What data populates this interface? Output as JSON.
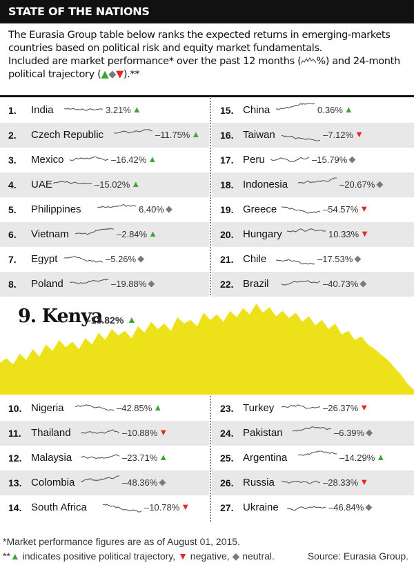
{
  "header": {
    "title": "STATE OF THE NATIONS"
  },
  "intro": {
    "line1": "The Eurasia Group table below ranks the expected returns in emerging-markets",
    "line2": "countries based on political risk and equity market fundamentals.",
    "line3a": "Included are market performance* over the past 12 months (",
    "line3b": "%) and 24-month",
    "line4a": "political trajectory (",
    "line4b": ").**"
  },
  "colors": {
    "up": "#3aa830",
    "down": "#e02a26",
    "neutral": "#7a7a7a",
    "kenya_fill": "#ede21a"
  },
  "chart_data": {
    "type": "table",
    "columns": [
      "rank",
      "country",
      "market_performance_12m_pct",
      "political_trajectory_24m"
    ],
    "rows": [
      {
        "rank": "1.",
        "country": "India",
        "value": "3.21%",
        "trend": "up"
      },
      {
        "rank": "2.",
        "country": "Czech Republic",
        "value": "–11.75%",
        "trend": "up"
      },
      {
        "rank": "3.",
        "country": "Mexico",
        "value": "–16.42%",
        "trend": "up"
      },
      {
        "rank": "4.",
        "country": "UAE",
        "value": "–15.02%",
        "trend": "up"
      },
      {
        "rank": "5.",
        "country": "Philippines",
        "value": "6.40%",
        "trend": "neutral"
      },
      {
        "rank": "6.",
        "country": "Vietnam",
        "value": "–2.84%",
        "trend": "up"
      },
      {
        "rank": "7.",
        "country": "Egypt",
        "value": "–5.26%",
        "trend": "neutral"
      },
      {
        "rank": "8.",
        "country": "Poland",
        "value": "–19.88%",
        "trend": "neutral"
      },
      {
        "rank": "9.",
        "country": "Kenya",
        "value": "–13.82%",
        "trend": "up"
      },
      {
        "rank": "10.",
        "country": "Nigeria",
        "value": "–42.85%",
        "trend": "up"
      },
      {
        "rank": "11.",
        "country": "Thailand",
        "value": "–10.88%",
        "trend": "down"
      },
      {
        "rank": "12.",
        "country": "Malaysia",
        "value": "–23.71%",
        "trend": "up"
      },
      {
        "rank": "13.",
        "country": "Colombia",
        "value": "–48.36%",
        "trend": "neutral"
      },
      {
        "rank": "14.",
        "country": "South Africa",
        "value": "–10.78%",
        "trend": "down"
      },
      {
        "rank": "15.",
        "country": "China",
        "value": "0.36%",
        "trend": "up"
      },
      {
        "rank": "16.",
        "country": "Taiwan",
        "value": "–7.12%",
        "trend": "down"
      },
      {
        "rank": "17.",
        "country": "Peru",
        "value": "–15.79%",
        "trend": "neutral"
      },
      {
        "rank": "18.",
        "country": "Indonesia",
        "value": "–20.67%",
        "trend": "neutral"
      },
      {
        "rank": "19.",
        "country": "Greece",
        "value": "–54.57%",
        "trend": "down"
      },
      {
        "rank": "20.",
        "country": "Hungary",
        "value": "10.33%",
        "trend": "down"
      },
      {
        "rank": "21.",
        "country": "Chile",
        "value": "–17.53%",
        "trend": "neutral"
      },
      {
        "rank": "22.",
        "country": "Brazil",
        "value": "–40.73%",
        "trend": "neutral"
      },
      {
        "rank": "23.",
        "country": "Turkey",
        "value": "–26.37%",
        "trend": "down"
      },
      {
        "rank": "24.",
        "country": "Pakistan",
        "value": "–6.39%",
        "trend": "neutral"
      },
      {
        "rank": "25.",
        "country": "Argentina",
        "value": "–14.29%",
        "trend": "up"
      },
      {
        "rank": "26.",
        "country": "Russia",
        "value": "–28.33%",
        "trend": "down"
      },
      {
        "rank": "27.",
        "country": "Ukraine",
        "value": "–46.84%",
        "trend": "neutral"
      }
    ],
    "kenya_series": [
      0.35,
      0.4,
      0.33,
      0.45,
      0.38,
      0.5,
      0.42,
      0.55,
      0.48,
      0.6,
      0.52,
      0.58,
      0.5,
      0.62,
      0.55,
      0.68,
      0.6,
      0.72,
      0.65,
      0.7,
      0.62,
      0.75,
      0.68,
      0.8,
      0.72,
      0.78,
      0.7,
      0.85,
      0.78,
      0.82,
      0.75,
      0.9,
      0.82,
      0.88,
      0.8,
      0.92,
      0.85,
      0.95,
      0.88,
      1.0,
      0.9,
      0.96,
      0.86,
      0.92,
      0.84,
      0.9,
      0.8,
      0.86,
      0.76,
      0.82,
      0.72,
      0.78,
      0.66,
      0.7,
      0.6,
      0.64,
      0.55,
      0.5,
      0.44,
      0.38,
      0.3,
      0.22,
      0.12,
      0.05
    ]
  },
  "footer": {
    "note1": "*Market performance figures are as of August 01, 2015.",
    "note2a": "**",
    "note2b": " indicates positive political trajectory, ",
    "note2c": " negative, ",
    "note2d": " neutral.",
    "source": "Source: Eurasia Group."
  }
}
